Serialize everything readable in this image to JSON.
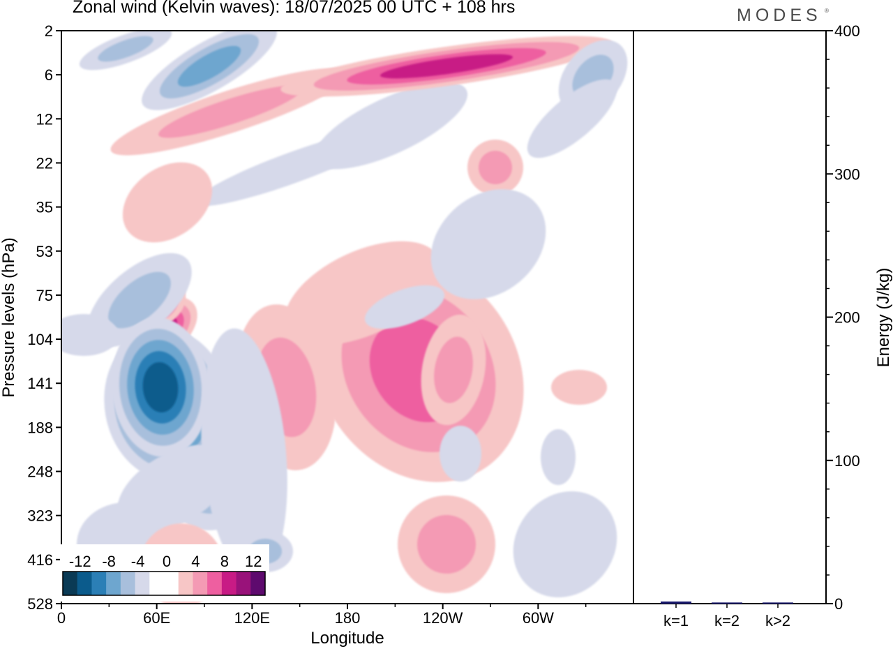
{
  "header": {
    "title": "Zonal wind (Kelvin waves):  18/07/2025  00 UTC  + 108 hrs",
    "logo": "MODES",
    "logo_mark": "®"
  },
  "chart_data": [
    {
      "type": "heatmap",
      "title": "Zonal wind (Kelvin waves):  18/07/2025  00 UTC  + 108 hrs",
      "xlabel": "Longitude",
      "ylabel": "Pressure levels (hPa)",
      "x_ticks": [
        "0",
        "60E",
        "120E",
        "180",
        "120W",
        "60W"
      ],
      "x_tick_degrees": [
        0,
        60,
        120,
        180,
        240,
        300
      ],
      "xlim": [
        0,
        360
      ],
      "y_ticks": [
        "2",
        "6",
        "12",
        "22",
        "35",
        "53",
        "75",
        "104",
        "141",
        "188",
        "248",
        "323",
        "416",
        "528"
      ],
      "y_axis_reversed": true,
      "colorbar": {
        "tick_labels": [
          "-12",
          "-8",
          "-4",
          "0",
          "4",
          "8",
          "12"
        ],
        "colors": [
          "#0a3a55",
          "#0b5b8c",
          "#2b7fb6",
          "#6ea6cf",
          "#a8bfdc",
          "#d6d9ea",
          "#ffffff",
          "#ffffff",
          "#f7c6c6",
          "#f49ab4",
          "#ee5fa0",
          "#c81b85",
          "#99127a",
          "#5e0a6e"
        ]
      },
      "features": [
        {
          "kind": "negative",
          "lon": 65,
          "pressure": 141,
          "peak": -14
        },
        {
          "kind": "positive",
          "lon": 63,
          "pressure": 95,
          "peak": 10
        },
        {
          "kind": "positive",
          "lon": 238,
          "pressure": 141,
          "peak": 10
        },
        {
          "kind": "positive",
          "lon": 205,
          "pressure": 6,
          "peak": 9
        },
        {
          "kind": "negative",
          "lon": 92,
          "pressure": 5,
          "peak": -8
        }
      ]
    },
    {
      "type": "bar",
      "ylabel": "Energy (J/kg)",
      "categories": [
        "k=1",
        "k=2",
        "k>2"
      ],
      "values": [
        1.5,
        0.8,
        0.8
      ],
      "ylim": [
        0,
        400
      ],
      "y_ticks": [
        "0",
        "100",
        "200",
        "300",
        "400"
      ],
      "bar_color": "#1a1a6e"
    }
  ]
}
